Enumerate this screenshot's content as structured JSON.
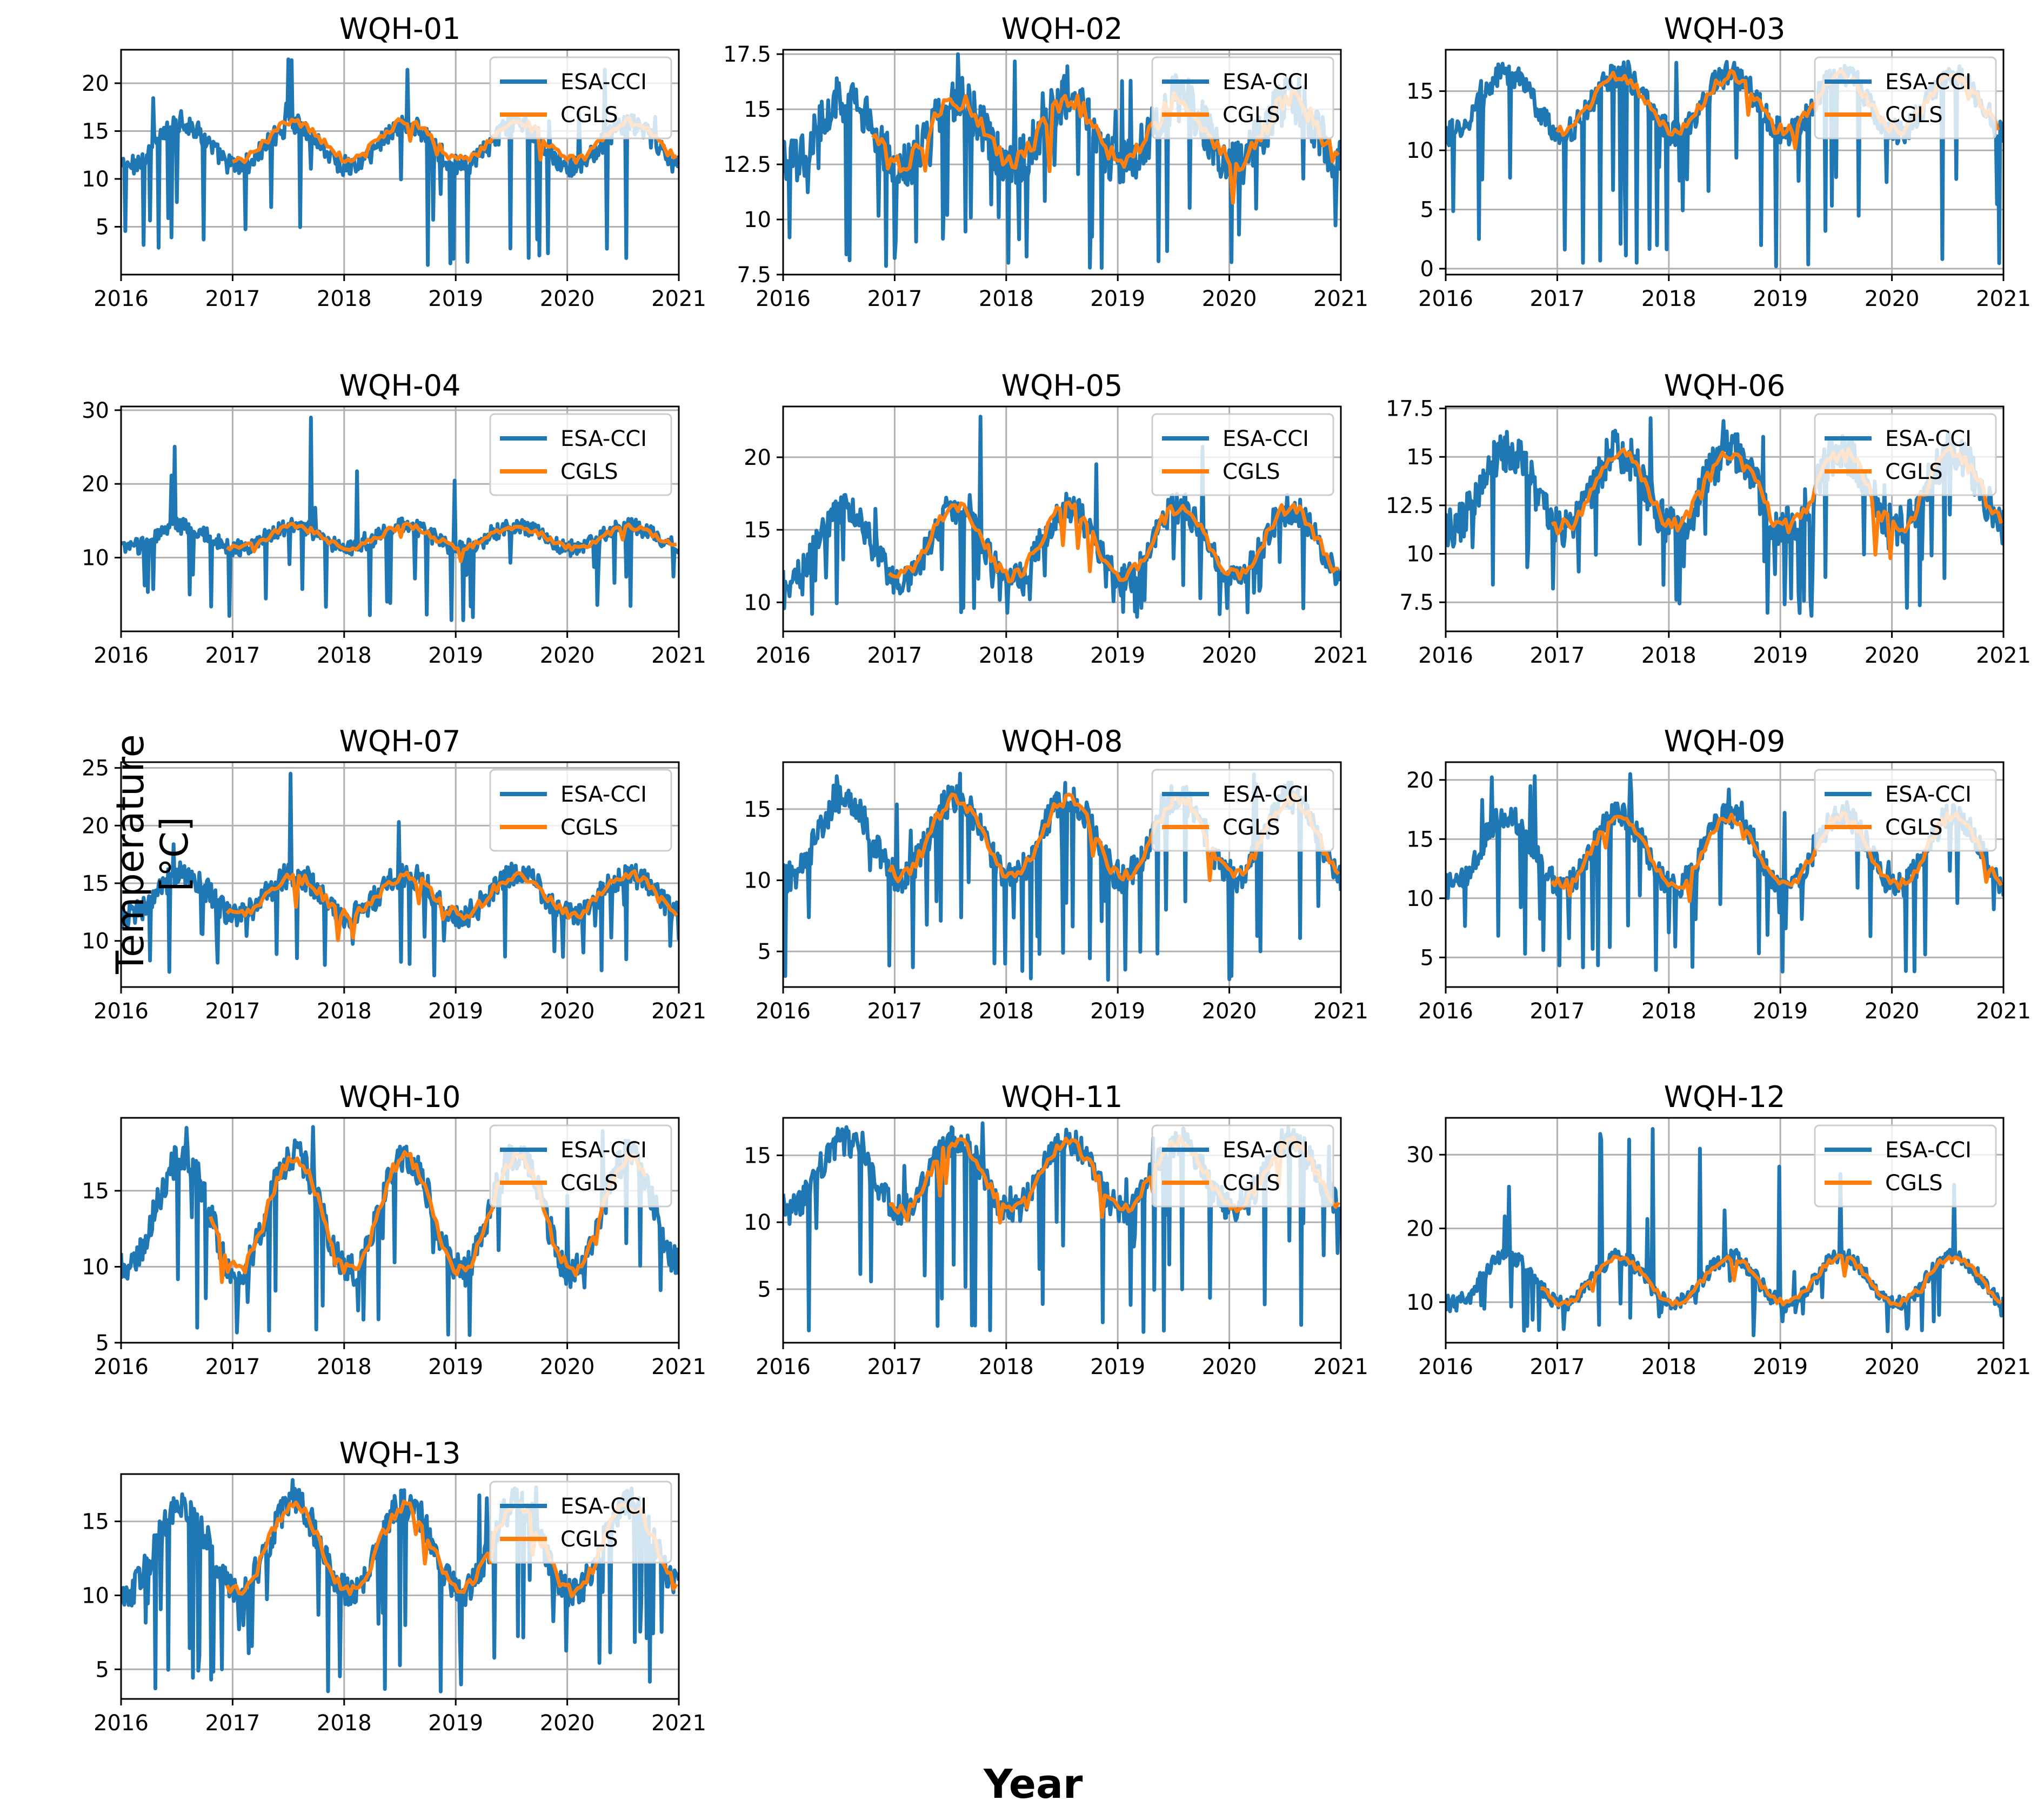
{
  "figure": {
    "ylabel": "Temperature [°C]",
    "xlabel": "Year"
  },
  "colors": {
    "esa": "#1f77b4",
    "cgls": "#ff7f0e",
    "grid": "#b0b0b0"
  },
  "chart_data": [
    {
      "type": "line",
      "title": "WQH-01",
      "x_ticks": [
        "2016",
        "2017",
        "2018",
        "2019",
        "2020",
        "2021"
      ],
      "xlim": [
        2016,
        2021
      ],
      "ylim": [
        0,
        23.5
      ],
      "y_ticks": [
        5,
        10,
        15,
        20
      ],
      "series": [
        {
          "name": "ESA-CCI",
          "base": 13.5,
          "amp": 2.2,
          "spike_min": 1,
          "spike_max": 22.5
        },
        {
          "name": "CGLS",
          "base": 14.0,
          "amp": 2.0,
          "start": 2017.0,
          "end": 2020.98
        }
      ]
    },
    {
      "type": "line",
      "title": "WQH-02",
      "x_ticks": [
        "2016",
        "2017",
        "2018",
        "2019",
        "2020",
        "2021"
      ],
      "xlim": [
        2016,
        2021
      ],
      "ylim": [
        7.5,
        17.7
      ],
      "y_ticks": [
        7.5,
        10.0,
        12.5,
        15.0,
        17.5
      ],
      "series": [
        {
          "name": "ESA-CCI",
          "base": 14.0,
          "amp": 1.5,
          "spike_min": 7.8,
          "spike_max": 17.5
        },
        {
          "name": "CGLS",
          "base": 14.0,
          "amp": 1.4,
          "start": 2016.8,
          "end": 2020.98
        }
      ]
    },
    {
      "type": "line",
      "title": "WQH-03",
      "x_ticks": [
        "2016",
        "2017",
        "2018",
        "2019",
        "2020",
        "2021"
      ],
      "xlim": [
        2016,
        2021
      ],
      "ylim": [
        -0.5,
        18.5
      ],
      "y_ticks": [
        0,
        5,
        10,
        15
      ],
      "series": [
        {
          "name": "ESA-CCI",
          "base": 14.0,
          "amp": 2.5,
          "spike_min": 0.2,
          "spike_max": 17.5
        },
        {
          "name": "CGLS",
          "base": 14.0,
          "amp": 2.3,
          "start": 2017.0,
          "end": 2020.95
        }
      ]
    },
    {
      "type": "line",
      "title": "WQH-04",
      "x_ticks": [
        "2016",
        "2017",
        "2018",
        "2019",
        "2020",
        "2021"
      ],
      "xlim": [
        2016,
        2021
      ],
      "ylim": [
        0,
        30.5
      ],
      "y_ticks": [
        10,
        20,
        30
      ],
      "series": [
        {
          "name": "ESA-CCI",
          "base": 12.8,
          "amp": 1.5,
          "spike_min": 1.5,
          "spike_max": 29
        },
        {
          "name": "CGLS",
          "base": 12.8,
          "amp": 1.4,
          "start": 2016.95,
          "end": 2020.98
        }
      ]
    },
    {
      "type": "line",
      "title": "WQH-05",
      "x_ticks": [
        "2016",
        "2017",
        "2018",
        "2019",
        "2020",
        "2021"
      ],
      "xlim": [
        2016,
        2021
      ],
      "ylim": [
        8,
        23.5
      ],
      "y_ticks": [
        10,
        15,
        20
      ],
      "series": [
        {
          "name": "ESA-CCI",
          "base": 14.0,
          "amp": 2.5,
          "spike_min": 9,
          "spike_max": 22.8
        },
        {
          "name": "CGLS",
          "base": 14.2,
          "amp": 2.4,
          "start": 2016.95,
          "end": 2020.98
        }
      ]
    },
    {
      "type": "line",
      "title": "WQH-06",
      "x_ticks": [
        "2016",
        "2017",
        "2018",
        "2019",
        "2020",
        "2021"
      ],
      "xlim": [
        2016,
        2021
      ],
      "ylim": [
        6,
        17.6
      ],
      "y_ticks": [
        7.5,
        10.0,
        12.5,
        15.0,
        17.5
      ],
      "series": [
        {
          "name": "ESA-CCI",
          "base": 13.3,
          "amp": 2.0,
          "spike_min": 6.8,
          "spike_max": 17.0
        },
        {
          "name": "CGLS",
          "base": 13.3,
          "amp": 1.9,
          "start": 2016.95,
          "end": 2020.98
        }
      ]
    },
    {
      "type": "line",
      "title": "WQH-07",
      "x_ticks": [
        "2016",
        "2017",
        "2018",
        "2019",
        "2020",
        "2021"
      ],
      "xlim": [
        2016,
        2021
      ],
      "ylim": [
        6,
        25.5
      ],
      "y_ticks": [
        10,
        15,
        20,
        25
      ],
      "series": [
        {
          "name": "ESA-CCI",
          "base": 14.0,
          "amp": 1.8,
          "spike_min": 7,
          "spike_max": 24.5
        },
        {
          "name": "CGLS",
          "base": 14.0,
          "amp": 1.7,
          "start": 2016.95,
          "end": 2020.98
        }
      ]
    },
    {
      "type": "line",
      "title": "WQH-08",
      "x_ticks": [
        "2016",
        "2017",
        "2018",
        "2019",
        "2020",
        "2021"
      ],
      "xlim": [
        2016,
        2021
      ],
      "ylim": [
        2.5,
        18.3
      ],
      "y_ticks": [
        5,
        10,
        15
      ],
      "series": [
        {
          "name": "ESA-CCI",
          "base": 13.0,
          "amp": 2.8,
          "spike_min": 3,
          "spike_max": 17.5
        },
        {
          "name": "CGLS",
          "base": 13.0,
          "amp": 2.7,
          "start": 2016.95,
          "end": 2020.98
        }
      ]
    },
    {
      "type": "line",
      "title": "WQH-09",
      "x_ticks": [
        "2016",
        "2017",
        "2018",
        "2019",
        "2020",
        "2021"
      ],
      "xlim": [
        2016,
        2021
      ],
      "ylim": [
        2.5,
        21.5
      ],
      "y_ticks": [
        5,
        10,
        15,
        20
      ],
      "series": [
        {
          "name": "ESA-CCI",
          "base": 14.0,
          "amp": 3.0,
          "spike_min": 3.8,
          "spike_max": 20.5
        },
        {
          "name": "CGLS",
          "base": 14.0,
          "amp": 2.9,
          "start": 2016.95,
          "end": 2020.98
        }
      ]
    },
    {
      "type": "line",
      "title": "WQH-10",
      "x_ticks": [
        "2016",
        "2017",
        "2018",
        "2019",
        "2020",
        "2021"
      ],
      "xlim": [
        2016,
        2021
      ],
      "ylim": [
        5,
        19.8
      ],
      "y_ticks": [
        5,
        10,
        15
      ],
      "series": [
        {
          "name": "ESA-CCI",
          "base": 13.5,
          "amp": 3.8,
          "spike_min": 5.5,
          "spike_max": 19.2
        },
        {
          "name": "CGLS",
          "base": 13.5,
          "amp": 3.7,
          "start": 2016.8,
          "end": 2020.7
        }
      ]
    },
    {
      "type": "line",
      "title": "WQH-11",
      "x_ticks": [
        "2016",
        "2017",
        "2018",
        "2019",
        "2020",
        "2021"
      ],
      "xlim": [
        2016,
        2021
      ],
      "ylim": [
        1,
        17.8
      ],
      "y_ticks": [
        5,
        10,
        15
      ],
      "series": [
        {
          "name": "ESA-CCI",
          "base": 13.5,
          "amp": 2.6,
          "spike_min": 1.8,
          "spike_max": 17.4
        },
        {
          "name": "CGLS",
          "base": 13.5,
          "amp": 2.5,
          "start": 2016.95,
          "end": 2020.98
        }
      ]
    },
    {
      "type": "line",
      "title": "WQH-12",
      "x_ticks": [
        "2016",
        "2017",
        "2018",
        "2019",
        "2020",
        "2021"
      ],
      "xlim": [
        2016,
        2021
      ],
      "ylim": [
        4.5,
        35
      ],
      "y_ticks": [
        10,
        20,
        30
      ],
      "series": [
        {
          "name": "ESA-CCI",
          "base": 13.0,
          "amp": 3.2,
          "spike_min": 5.5,
          "spike_max": 33.5
        },
        {
          "name": "CGLS",
          "base": 13.0,
          "amp": 3.1,
          "start": 2016.85,
          "end": 2020.98
        }
      ]
    },
    {
      "type": "line",
      "title": "WQH-13",
      "x_ticks": [
        "2016",
        "2017",
        "2018",
        "2019",
        "2020",
        "2021"
      ],
      "xlim": [
        2016,
        2021
      ],
      "ylim": [
        3,
        18.2
      ],
      "y_ticks": [
        5,
        10,
        15
      ],
      "series": [
        {
          "name": "ESA-CCI",
          "base": 13.2,
          "amp": 3.0,
          "spike_min": 3.5,
          "spike_max": 17.8
        },
        {
          "name": "CGLS",
          "base": 13.2,
          "amp": 2.9,
          "start": 2016.95,
          "end": 2020.98
        }
      ]
    }
  ]
}
